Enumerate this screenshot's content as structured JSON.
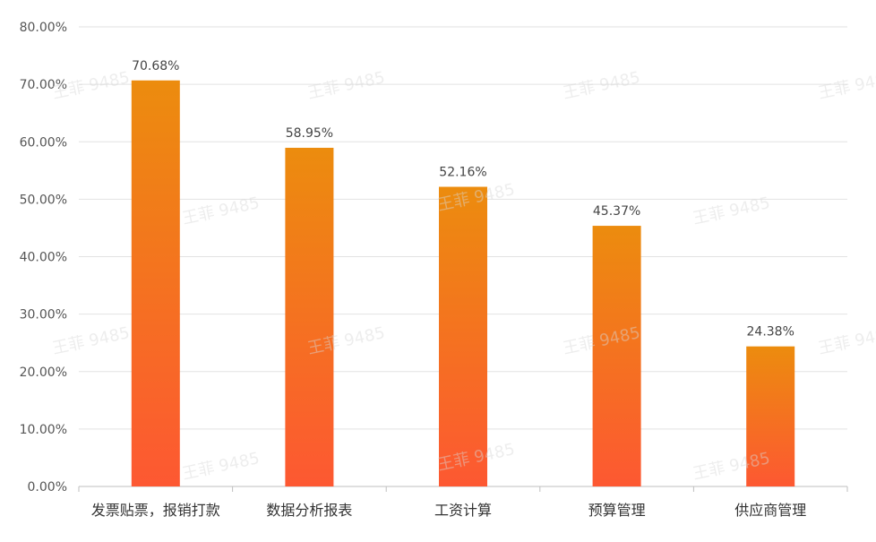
{
  "chart_data": {
    "type": "bar",
    "categories": [
      "发票贴票，报销打款",
      "数据分析报表",
      "工资计算",
      "预算管理",
      "供应商管理"
    ],
    "values": [
      70.68,
      58.95,
      52.16,
      45.37,
      24.38
    ],
    "data_labels": [
      "70.68%",
      "58.95%",
      "52.16%",
      "45.37%",
      "24.38%"
    ],
    "ylim": [
      0,
      80
    ],
    "yticks": [
      "0.00%",
      "10.00%",
      "20.00%",
      "30.00%",
      "40.00%",
      "50.00%",
      "60.00%",
      "70.00%",
      "80.00%"
    ],
    "grid": true,
    "bar_gradient": {
      "top": "#ec8c0e",
      "bottom": "#fd5832"
    },
    "watermark": "王菲 9485"
  }
}
